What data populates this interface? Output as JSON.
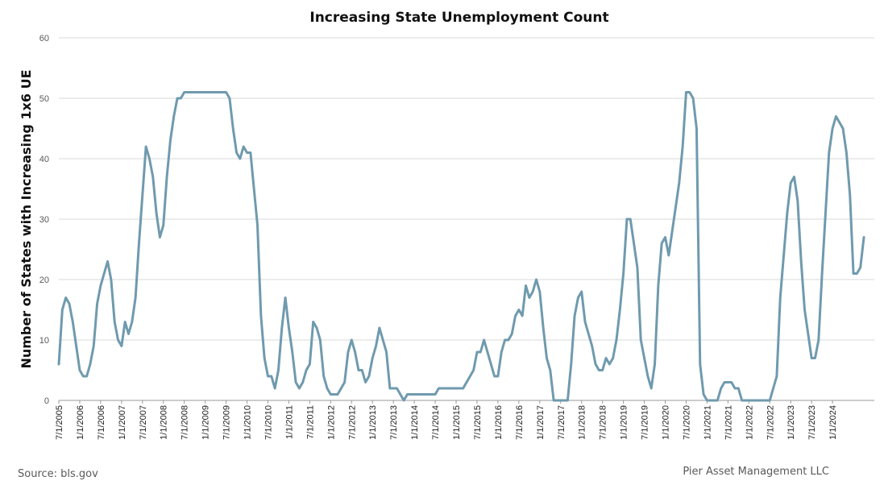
{
  "chart_data": {
    "type": "line",
    "title": "Increasing State Unemployment Count",
    "xlabel": "",
    "ylabel": "Number of States with Increasing 1x6 UE",
    "ylim": [
      0,
      60
    ],
    "yticks": [
      0,
      10,
      20,
      30,
      40,
      50,
      60
    ],
    "grid": true,
    "legend": "none",
    "xlim": [
      "7/1/2005",
      "1/1/2025"
    ],
    "xtick_labels": [
      "7/1/2005",
      "1/1/2006",
      "7/1/2006",
      "1/1/2007",
      "7/1/2007",
      "1/1/2008",
      "7/1/2008",
      "1/1/2009",
      "7/1/2009",
      "1/1/2010",
      "7/1/2010",
      "1/1/2011",
      "7/1/2011",
      "1/1/2012",
      "7/1/2012",
      "1/1/2013",
      "7/1/2013",
      "1/1/2014",
      "7/1/2014",
      "1/1/2015",
      "7/1/2015",
      "1/1/2016",
      "7/1/2016",
      "1/1/2017",
      "7/1/2017",
      "1/1/2018",
      "7/1/2018",
      "1/1/2019",
      "7/1/2019",
      "1/1/2020",
      "7/1/2020",
      "1/1/2021",
      "7/1/2021",
      "1/1/2022",
      "7/1/2022",
      "1/1/2023",
      "7/1/2023",
      "1/1/2024"
    ],
    "series": [
      {
        "color": "#6f9aae",
        "points": [
          [
            "7/1/2005",
            6
          ],
          [
            "8/1/2005",
            15
          ],
          [
            "9/1/2005",
            17
          ],
          [
            "10/1/2005",
            16
          ],
          [
            "11/1/2005",
            13
          ],
          [
            "12/1/2005",
            9
          ],
          [
            "1/1/2006",
            5
          ],
          [
            "2/1/2006",
            4
          ],
          [
            "3/1/2006",
            4
          ],
          [
            "4/1/2006",
            6
          ],
          [
            "5/1/2006",
            9
          ],
          [
            "6/1/2006",
            16
          ],
          [
            "7/1/2006",
            19
          ],
          [
            "8/1/2006",
            21
          ],
          [
            "9/1/2006",
            23
          ],
          [
            "10/1/2006",
            20
          ],
          [
            "11/1/2006",
            13
          ],
          [
            "12/1/2006",
            10
          ],
          [
            "1/1/2007",
            9
          ],
          [
            "2/1/2007",
            13
          ],
          [
            "3/1/2007",
            11
          ],
          [
            "4/1/2007",
            13
          ],
          [
            "5/1/2007",
            17
          ],
          [
            "6/1/2007",
            26
          ],
          [
            "7/1/2007",
            34
          ],
          [
            "8/1/2007",
            42
          ],
          [
            "9/1/2007",
            40
          ],
          [
            "10/1/2007",
            37
          ],
          [
            "11/1/2007",
            31
          ],
          [
            "12/1/2007",
            27
          ],
          [
            "1/1/2008",
            29
          ],
          [
            "2/1/2008",
            37
          ],
          [
            "3/1/2008",
            43
          ],
          [
            "4/1/2008",
            47
          ],
          [
            "5/1/2008",
            50
          ],
          [
            "6/1/2008",
            50
          ],
          [
            "7/1/2008",
            51
          ],
          [
            "8/1/2008",
            51
          ],
          [
            "9/1/2008",
            51
          ],
          [
            "10/1/2008",
            51
          ],
          [
            "11/1/2008",
            51
          ],
          [
            "12/1/2008",
            51
          ],
          [
            "1/1/2009",
            51
          ],
          [
            "2/1/2009",
            51
          ],
          [
            "3/1/2009",
            51
          ],
          [
            "4/1/2009",
            51
          ],
          [
            "5/1/2009",
            51
          ],
          [
            "6/1/2009",
            51
          ],
          [
            "7/1/2009",
            51
          ],
          [
            "8/1/2009",
            50
          ],
          [
            "9/1/2009",
            45
          ],
          [
            "10/1/2009",
            41
          ],
          [
            "11/1/2009",
            40
          ],
          [
            "12/1/2009",
            42
          ],
          [
            "1/1/2010",
            41
          ],
          [
            "2/1/2010",
            41
          ],
          [
            "3/1/2010",
            35
          ],
          [
            "4/1/2010",
            29
          ],
          [
            "5/1/2010",
            14
          ],
          [
            "6/1/2010",
            7
          ],
          [
            "7/1/2010",
            4
          ],
          [
            "8/1/2010",
            4
          ],
          [
            "9/1/2010",
            2
          ],
          [
            "10/1/2010",
            5
          ],
          [
            "11/1/2010",
            12
          ],
          [
            "12/1/2010",
            17
          ],
          [
            "1/1/2011",
            12
          ],
          [
            "2/1/2011",
            8
          ],
          [
            "3/1/2011",
            3
          ],
          [
            "4/1/2011",
            2
          ],
          [
            "5/1/2011",
            3
          ],
          [
            "6/1/2011",
            5
          ],
          [
            "7/1/2011",
            6
          ],
          [
            "8/1/2011",
            13
          ],
          [
            "9/1/2011",
            12
          ],
          [
            "10/1/2011",
            10
          ],
          [
            "11/1/2011",
            4
          ],
          [
            "12/1/2011",
            2
          ],
          [
            "1/1/2012",
            1
          ],
          [
            "2/1/2012",
            1
          ],
          [
            "3/1/2012",
            1
          ],
          [
            "4/1/2012",
            2
          ],
          [
            "5/1/2012",
            3
          ],
          [
            "6/1/2012",
            8
          ],
          [
            "7/1/2012",
            10
          ],
          [
            "8/1/2012",
            8
          ],
          [
            "9/1/2012",
            5
          ],
          [
            "10/1/2012",
            5
          ],
          [
            "11/1/2012",
            3
          ],
          [
            "12/1/2012",
            4
          ],
          [
            "1/1/2013",
            7
          ],
          [
            "2/1/2013",
            9
          ],
          [
            "3/1/2013",
            12
          ],
          [
            "4/1/2013",
            10
          ],
          [
            "5/1/2013",
            8
          ],
          [
            "6/1/2013",
            2
          ],
          [
            "7/1/2013",
            2
          ],
          [
            "8/1/2013",
            2
          ],
          [
            "9/1/2013",
            1
          ],
          [
            "10/1/2013",
            0
          ],
          [
            "11/1/2013",
            1
          ],
          [
            "12/1/2013",
            1
          ],
          [
            "1/1/2014",
            1
          ],
          [
            "2/1/2014",
            1
          ],
          [
            "3/1/2014",
            1
          ],
          [
            "4/1/2014",
            1
          ],
          [
            "5/1/2014",
            1
          ],
          [
            "6/1/2014",
            1
          ],
          [
            "7/1/2014",
            1
          ],
          [
            "8/1/2014",
            2
          ],
          [
            "9/1/2014",
            2
          ],
          [
            "10/1/2014",
            2
          ],
          [
            "11/1/2014",
            2
          ],
          [
            "12/1/2014",
            2
          ],
          [
            "1/1/2015",
            2
          ],
          [
            "2/1/2015",
            2
          ],
          [
            "3/1/2015",
            2
          ],
          [
            "4/1/2015",
            3
          ],
          [
            "5/1/2015",
            4
          ],
          [
            "6/1/2015",
            5
          ],
          [
            "7/1/2015",
            8
          ],
          [
            "8/1/2015",
            8
          ],
          [
            "9/1/2015",
            10
          ],
          [
            "10/1/2015",
            8
          ],
          [
            "11/1/2015",
            6
          ],
          [
            "12/1/2015",
            4
          ],
          [
            "1/1/2016",
            4
          ],
          [
            "2/1/2016",
            8
          ],
          [
            "3/1/2016",
            10
          ],
          [
            "4/1/2016",
            10
          ],
          [
            "5/1/2016",
            11
          ],
          [
            "6/1/2016",
            14
          ],
          [
            "7/1/2016",
            15
          ],
          [
            "8/1/2016",
            14
          ],
          [
            "9/1/2016",
            19
          ],
          [
            "10/1/2016",
            17
          ],
          [
            "11/1/2016",
            18
          ],
          [
            "12/1/2016",
            20
          ],
          [
            "1/1/2017",
            18
          ],
          [
            "2/1/2017",
            12
          ],
          [
            "3/1/2017",
            7
          ],
          [
            "4/1/2017",
            5
          ],
          [
            "5/1/2017",
            0
          ],
          [
            "6/1/2017",
            0
          ],
          [
            "7/1/2017",
            0
          ],
          [
            "8/1/2017",
            0
          ],
          [
            "9/1/2017",
            0
          ],
          [
            "10/1/2017",
            6
          ],
          [
            "11/1/2017",
            14
          ],
          [
            "12/1/2017",
            17
          ],
          [
            "1/1/2018",
            18
          ],
          [
            "2/1/2018",
            13
          ],
          [
            "3/1/2018",
            11
          ],
          [
            "4/1/2018",
            9
          ],
          [
            "5/1/2018",
            6
          ],
          [
            "6/1/2018",
            5
          ],
          [
            "7/1/2018",
            5
          ],
          [
            "8/1/2018",
            7
          ],
          [
            "9/1/2018",
            6
          ],
          [
            "10/1/2018",
            7
          ],
          [
            "11/1/2018",
            10
          ],
          [
            "12/1/2018",
            15
          ],
          [
            "1/1/2019",
            21
          ],
          [
            "2/1/2019",
            30
          ],
          [
            "3/1/2019",
            30
          ],
          [
            "4/1/2019",
            26
          ],
          [
            "5/1/2019",
            22
          ],
          [
            "6/1/2019",
            10
          ],
          [
            "7/1/2019",
            7
          ],
          [
            "8/1/2019",
            4
          ],
          [
            "9/1/2019",
            2
          ],
          [
            "10/1/2019",
            6
          ],
          [
            "11/1/2019",
            19
          ],
          [
            "12/1/2019",
            26
          ],
          [
            "1/1/2020",
            27
          ],
          [
            "2/1/2020",
            24
          ],
          [
            "3/1/2020",
            28
          ],
          [
            "4/1/2020",
            32
          ],
          [
            "5/1/2020",
            36
          ],
          [
            "6/1/2020",
            42
          ],
          [
            "7/1/2020",
            51
          ],
          [
            "8/1/2020",
            51
          ],
          [
            "9/1/2020",
            50
          ],
          [
            "10/1/2020",
            45
          ],
          [
            "11/1/2020",
            6
          ],
          [
            "12/1/2020",
            1
          ],
          [
            "1/1/2021",
            0
          ],
          [
            "2/1/2021",
            0
          ],
          [
            "3/1/2021",
            0
          ],
          [
            "4/1/2021",
            0
          ],
          [
            "5/1/2021",
            2
          ],
          [
            "6/1/2021",
            3
          ],
          [
            "7/1/2021",
            3
          ],
          [
            "8/1/2021",
            3
          ],
          [
            "9/1/2021",
            2
          ],
          [
            "10/1/2021",
            2
          ],
          [
            "11/1/2021",
            0
          ],
          [
            "12/1/2021",
            0
          ],
          [
            "1/1/2022",
            0
          ],
          [
            "2/1/2022",
            0
          ],
          [
            "3/1/2022",
            0
          ],
          [
            "4/1/2022",
            0
          ],
          [
            "5/1/2022",
            0
          ],
          [
            "6/1/2022",
            0
          ],
          [
            "7/1/2022",
            0
          ],
          [
            "8/1/2022",
            2
          ],
          [
            "9/1/2022",
            4
          ],
          [
            "10/1/2022",
            17
          ],
          [
            "11/1/2022",
            24
          ],
          [
            "12/1/2022",
            31
          ],
          [
            "1/1/2023",
            36
          ],
          [
            "2/1/2023",
            37
          ],
          [
            "3/1/2023",
            33
          ],
          [
            "4/1/2023",
            23
          ],
          [
            "5/1/2023",
            15
          ],
          [
            "6/1/2023",
            11
          ],
          [
            "7/1/2023",
            7
          ],
          [
            "8/1/2023",
            7
          ],
          [
            "9/1/2023",
            10
          ],
          [
            "10/1/2023",
            21
          ],
          [
            "11/1/2023",
            31
          ],
          [
            "12/1/2023",
            41
          ],
          [
            "1/1/2024",
            45
          ],
          [
            "2/1/2024",
            47
          ],
          [
            "3/1/2024",
            46
          ],
          [
            "4/1/2024",
            45
          ],
          [
            "5/1/2024",
            41
          ],
          [
            "6/1/2024",
            34
          ],
          [
            "7/1/2024",
            21
          ],
          [
            "8/1/2024",
            21
          ],
          [
            "9/1/2024",
            22
          ],
          [
            "10/1/2024",
            27
          ]
        ]
      }
    ]
  },
  "footer": {
    "source": "Source: bls.gov",
    "credit": "Pier Asset Management LLC"
  }
}
